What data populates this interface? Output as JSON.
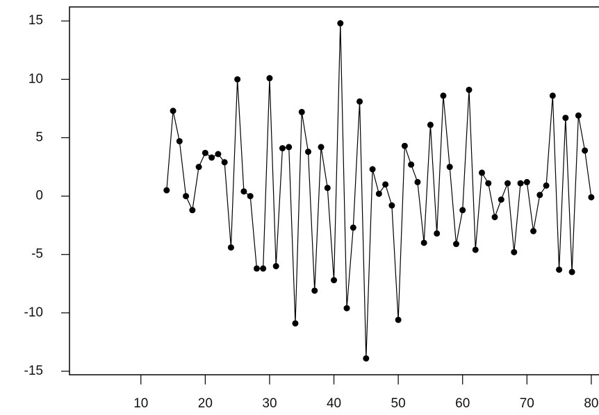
{
  "chart_data": {
    "type": "line",
    "color": "#000000",
    "x": [
      14,
      15,
      16,
      17,
      18,
      19,
      20,
      21,
      22,
      23,
      24,
      25,
      26,
      27,
      28,
      29,
      30,
      31,
      32,
      33,
      34,
      35,
      36,
      37,
      38,
      39,
      40,
      41,
      42,
      43,
      44,
      45,
      46,
      47,
      48,
      49,
      50,
      51,
      52,
      53,
      54,
      55,
      56,
      57,
      58,
      59,
      60,
      61,
      62,
      63,
      64,
      65,
      66,
      67,
      68,
      69,
      70,
      71,
      72,
      73,
      74,
      75,
      76,
      77,
      78,
      79,
      80
    ],
    "values": [
      0.5,
      7.3,
      4.7,
      0,
      -1.2,
      2.5,
      3.7,
      3.3,
      3.6,
      2.9,
      -4.4,
      10,
      0.4,
      0,
      -6.2,
      -6.2,
      10.1,
      -6,
      4.1,
      4.2,
      -10.9,
      7.2,
      3.8,
      -8.1,
      4.2,
      0.7,
      -7.2,
      14.8,
      -9.6,
      -2.7,
      8.1,
      -13.9,
      2.3,
      0.2,
      1.0,
      -0.8,
      -10.6,
      4.3,
      2.7,
      1.2,
      -4,
      6.1,
      -3.2,
      8.6,
      2.5,
      -4.1,
      -1.2,
      9.1,
      -4.6,
      2.0,
      1.1,
      -1.8,
      -0.3,
      1.1,
      -4.8,
      1.1,
      1.2,
      -3.0,
      0.1,
      0.9,
      8.6,
      -6.3,
      6.7,
      -6.5,
      6.9,
      3.9,
      -0.1
    ],
    "xlim": [
      -1.1,
      81.2
    ],
    "xticks": [
      10,
      20,
      30,
      40,
      50,
      60,
      70,
      80
    ],
    "ylim": [
      -15.3,
      16.2
    ],
    "yticks": [
      15,
      10,
      5,
      0,
      -5,
      -10,
      -15
    ]
  }
}
